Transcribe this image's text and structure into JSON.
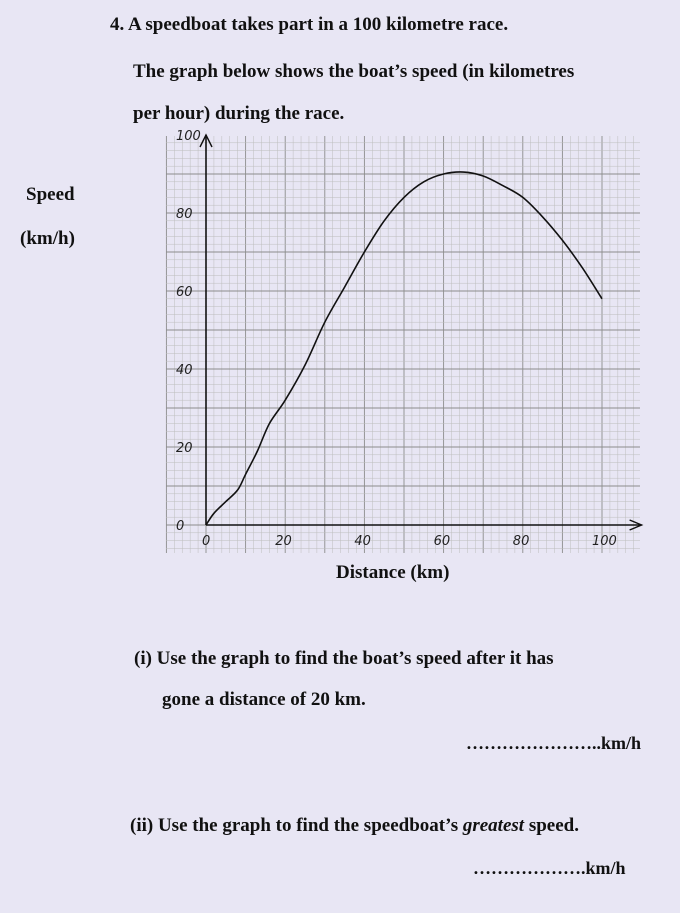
{
  "question": {
    "number_and_title": "4. A speedboat takes part in a 100 kilometre race.",
    "intro_line1": "The graph below shows the boat’s speed (in kilometres",
    "intro_line2": "per hour) during the race."
  },
  "y_axis_label": {
    "line1": "Speed",
    "line2": "(km/h)"
  },
  "x_axis_label": "Distance (km)",
  "chart_data": {
    "type": "line",
    "xlabel": "Distance (km)",
    "ylabel": "Speed (km/h)",
    "xlim": [
      0,
      110
    ],
    "ylim": [
      0,
      100
    ],
    "x_ticks": [
      "0",
      "20",
      "40",
      "60",
      "80",
      "100"
    ],
    "y_ticks": [
      "0",
      "20",
      "40",
      "60",
      "80",
      "100"
    ],
    "grid": true,
    "x": [
      0,
      2,
      5,
      8,
      10,
      13,
      16,
      20,
      25,
      30,
      35,
      40,
      45,
      50,
      55,
      60,
      65,
      70,
      75,
      80,
      85,
      90,
      95,
      100
    ],
    "values": [
      0,
      3,
      6,
      9,
      13,
      19,
      26,
      32,
      41,
      52,
      61,
      70,
      78,
      84,
      88,
      90,
      90.5,
      89.5,
      87,
      84,
      79,
      73,
      66,
      58
    ]
  },
  "part_i": {
    "line1": "(i) Use the graph to find the boat’s speed after it has",
    "line2": "gone a distance of 20 km.",
    "answer_blank": "…………………..km/h"
  },
  "part_ii": {
    "prefix": "(ii) Use the graph to find the speedboat’s ",
    "emphasis": "greatest",
    "suffix": " speed.",
    "answer_blank": "……………….km/h"
  }
}
